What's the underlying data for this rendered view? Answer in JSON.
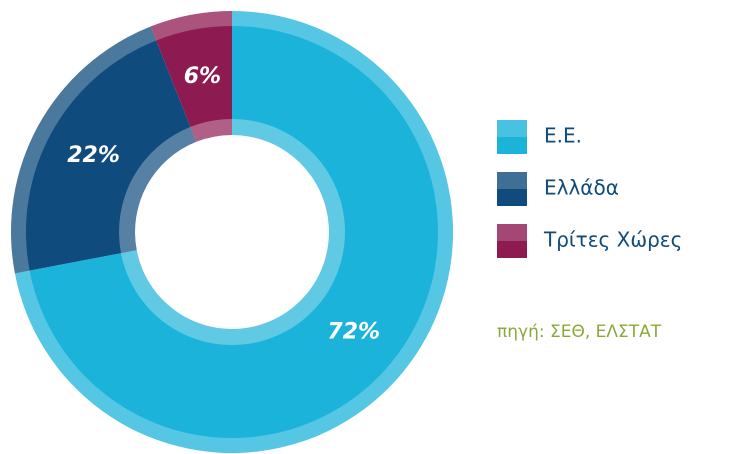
{
  "chart_data": {
    "type": "pie",
    "categories": [
      "Ε.Ε.",
      "Ελλάδα",
      "Τρίτες Χώρες"
    ],
    "values": [
      72,
      22,
      6
    ],
    "value_labels": [
      "72%",
      "22%",
      "6%"
    ],
    "colors": [
      "#1cb3da",
      "#0f4b7d",
      "#8e1a52"
    ],
    "donut": true,
    "legend": "right",
    "source": "πηγή: ΣΕΘ, ΕΛΣΤΑΤ"
  }
}
